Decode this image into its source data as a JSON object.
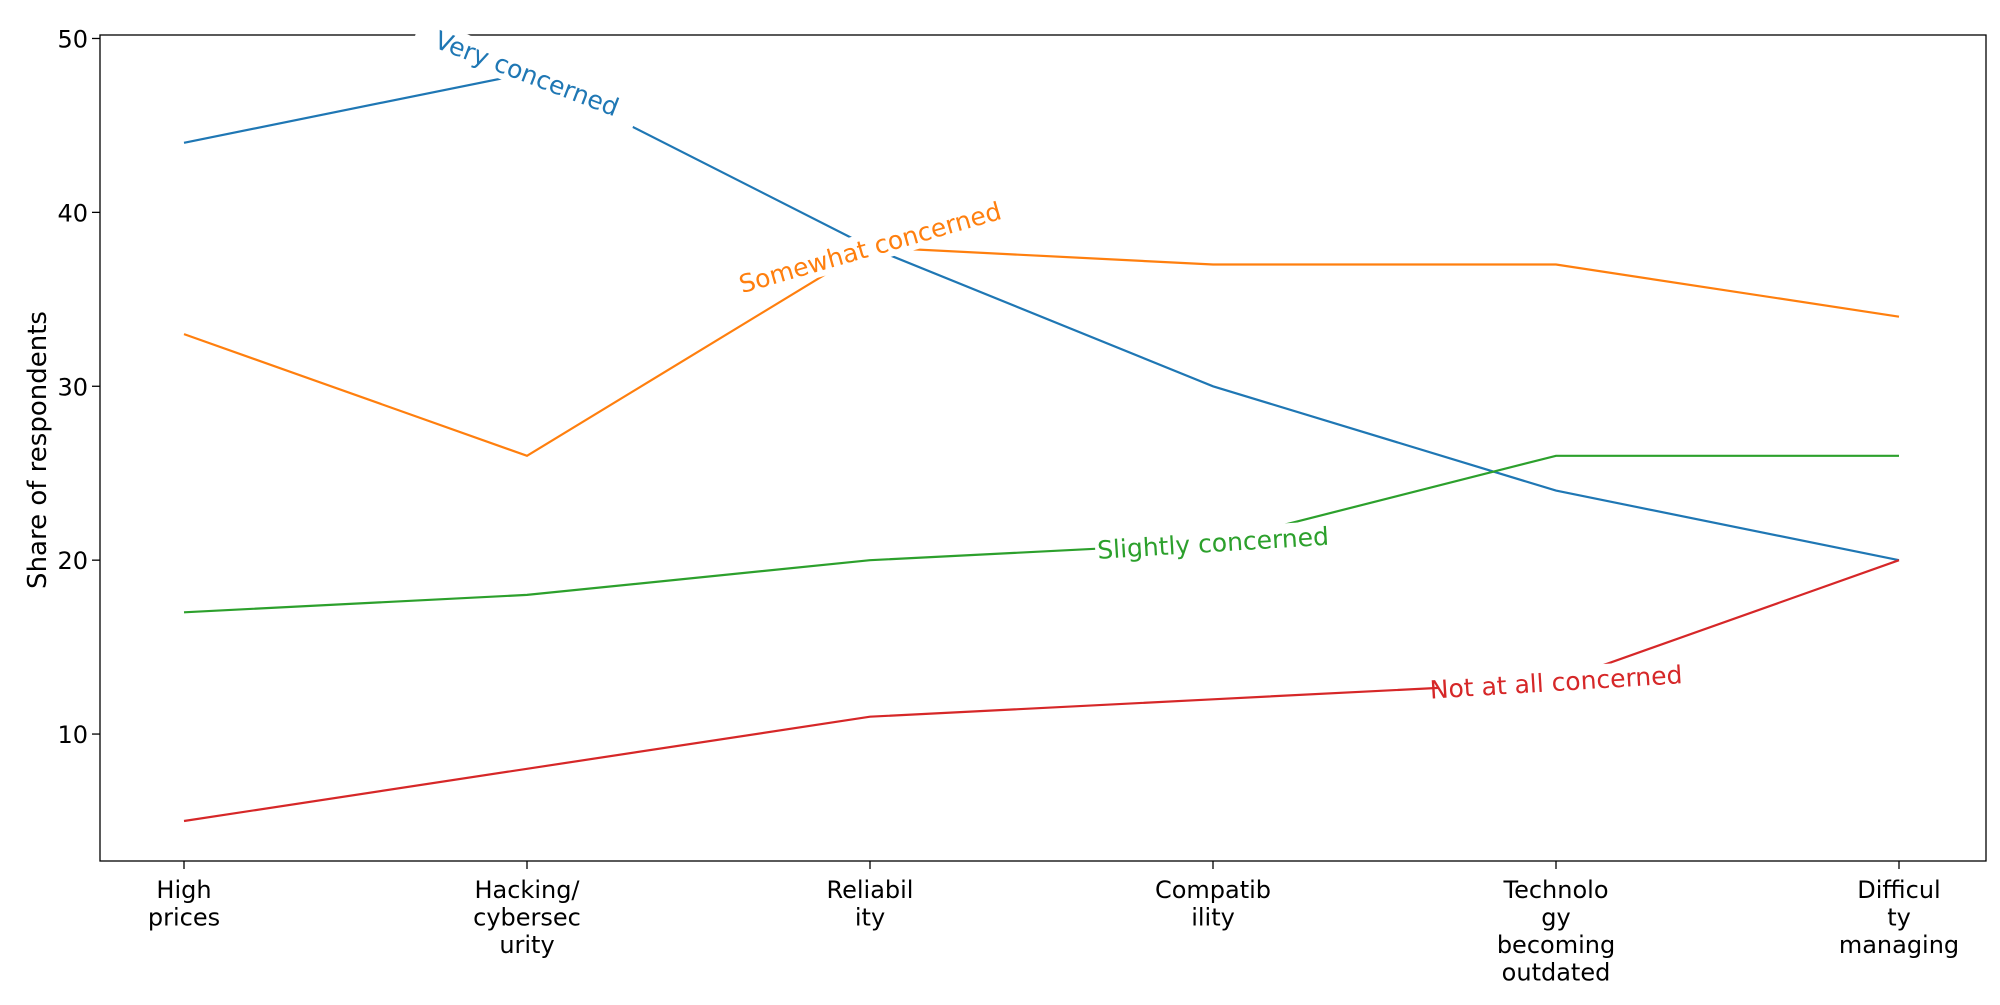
{
  "chart_data": {
    "type": "line",
    "title": "",
    "xlabel": "",
    "ylabel": "Share of respondents",
    "categories": [
      [
        "High",
        "prices"
      ],
      [
        "Hacking/",
        "cybersec",
        "urity"
      ],
      [
        "Reliabil",
        "ity"
      ],
      [
        "Compatib",
        "ility"
      ],
      [
        "Technolo",
        "gy",
        "becoming",
        "outdated"
      ],
      [
        "Difficul",
        "ty",
        "managing"
      ]
    ],
    "ylim": [
      2.7,
      50.2
    ],
    "yticks": [
      10,
      20,
      30,
      40,
      50
    ],
    "grid": false,
    "legend": "inline labels",
    "series": [
      {
        "name": "Very concerned",
        "color": "#1f77b4",
        "values": [
          44,
          48,
          38,
          30,
          24,
          20
        ],
        "label_at": 1.0,
        "label_angle": 21
      },
      {
        "name": "Somewhat concerned",
        "color": "#ff7f0e",
        "values": [
          33,
          26,
          38,
          37,
          37,
          34
        ],
        "label_at": 2.0,
        "label_angle": -16
      },
      {
        "name": "Slightly concerned",
        "color": "#2ca02c",
        "values": [
          17,
          18,
          20,
          21,
          26,
          26
        ],
        "label_at": 3.0,
        "label_angle": -3.5
      },
      {
        "name": "Not at all concerned",
        "color": "#d62728",
        "values": [
          5,
          8,
          11,
          12,
          13,
          20
        ],
        "label_at": 4.0,
        "label_angle": -3.5
      }
    ]
  }
}
